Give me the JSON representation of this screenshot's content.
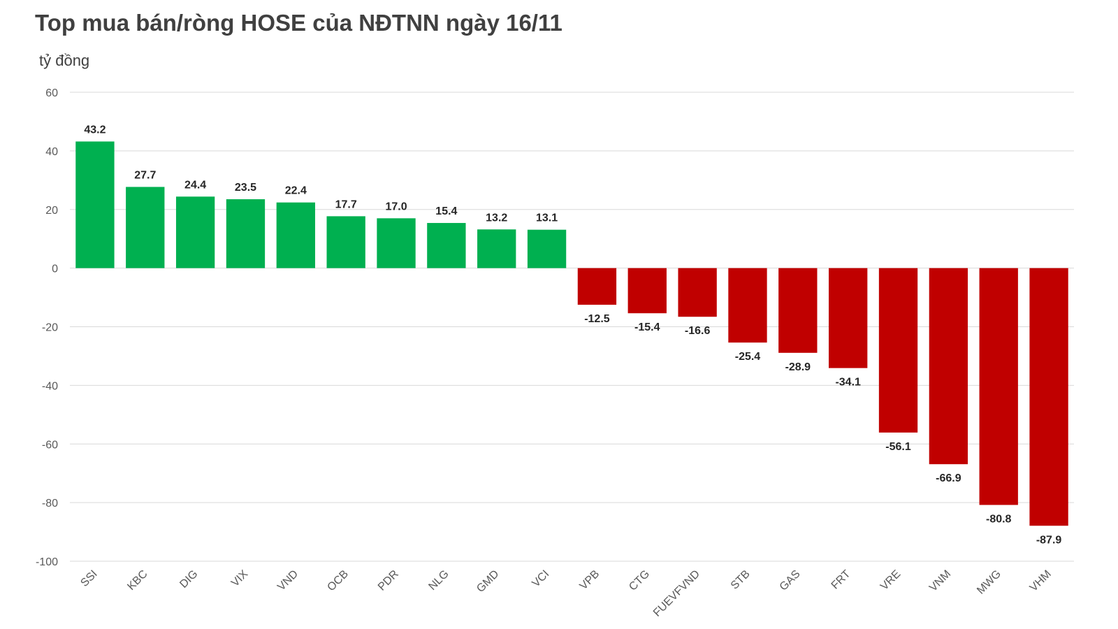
{
  "chart_data": {
    "type": "bar",
    "title": "Top mua bán/ròng HOSE của NĐTNN ngày 16/11",
    "ylabel": "tỷ đồng",
    "xlabel": "",
    "categories": [
      "SSI",
      "KBC",
      "DIG",
      "VIX",
      "VND",
      "OCB",
      "PDR",
      "NLG",
      "GMD",
      "VCI",
      "VPB",
      "CTG",
      "FUEVFVND",
      "STB",
      "GAS",
      "FRT",
      "VRE",
      "VNM",
      "MWG",
      "VHM"
    ],
    "values": [
      43.2,
      27.7,
      24.4,
      23.5,
      22.4,
      17.7,
      17.0,
      15.4,
      13.2,
      13.1,
      -12.5,
      -15.4,
      -16.6,
      -25.4,
      -28.9,
      -34.1,
      -56.1,
      -66.9,
      -80.8,
      -87.9
    ],
    "value_labels": [
      "43.2",
      "27.7",
      "24.4",
      "23.5",
      "22.4",
      "17.7",
      "17.0",
      "15.4",
      "13.2",
      "13.1",
      "-12.5",
      "-15.4",
      "-16.6",
      "-25.4",
      "-28.9",
      "-34.1",
      "-56.1",
      "-66.9",
      "-80.8",
      "-87.9"
    ],
    "ylim": [
      -100,
      60
    ],
    "yticks": [
      60,
      40,
      20,
      0,
      -20,
      -40,
      -60,
      -80,
      -100
    ],
    "grid": true,
    "legend": "none",
    "colors": {
      "positive": "#00b050",
      "negative": "#c00000",
      "grid": "#d9d9d9"
    }
  }
}
